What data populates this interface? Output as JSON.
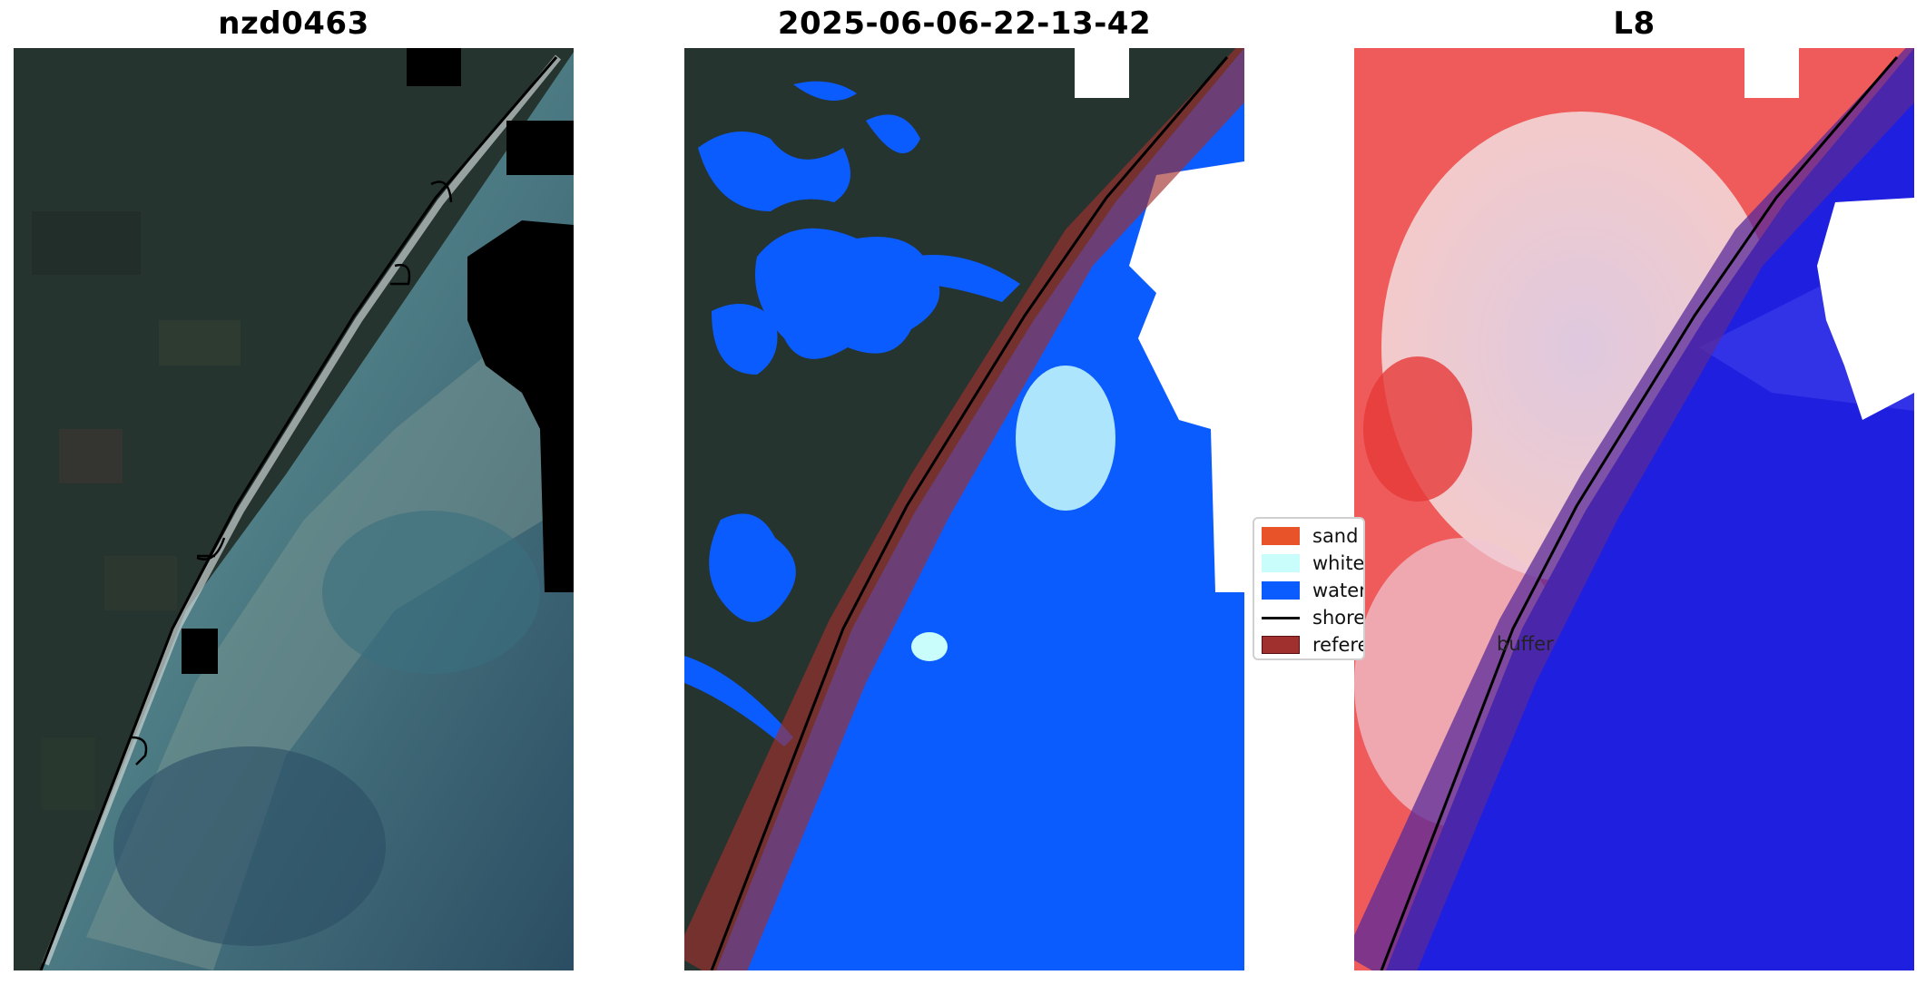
{
  "panels": [
    {
      "title": "nzd0463"
    },
    {
      "title": "2025-06-06-22-13-42"
    },
    {
      "title": "L8"
    }
  ],
  "legend": {
    "items": [
      {
        "label": "sand",
        "color": "#e8532a",
        "kind": "patch"
      },
      {
        "label": "whitewater",
        "color": "#c9fdfb",
        "kind": "patch"
      },
      {
        "label": "water",
        "color": "#0a5cff",
        "kind": "patch"
      },
      {
        "label": "shoreline",
        "color": "#000000",
        "kind": "line"
      },
      {
        "label": "reference shoreline buffer",
        "color": "#a0302d",
        "kind": "patch"
      }
    ]
  },
  "panel3_overlay_text": "buffer",
  "colors": {
    "water_class": "#0a5cff",
    "whitewater_class": "#c9fdfb",
    "buffer_overlay": "#a0302d",
    "index_positive": "#e62222",
    "index_negative": "#1f1fe0"
  }
}
